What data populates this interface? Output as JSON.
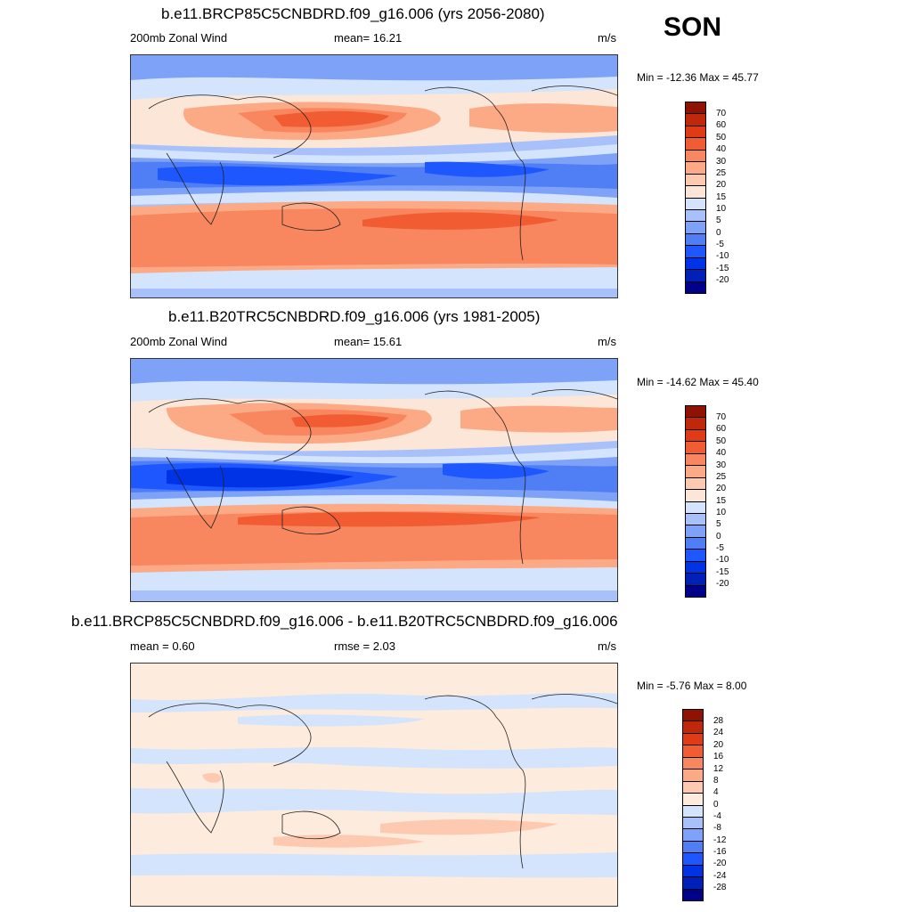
{
  "season": "SON",
  "colors": {
    "abs_scale": [
      "#00008b",
      "#0020b8",
      "#0033e6",
      "#1f57ff",
      "#4f7ef5",
      "#7ea2f7",
      "#a8c1fa",
      "#d3e4fc",
      "#fbe6d8",
      "#fdc9b0",
      "#fca985",
      "#f8865e",
      "#f25c33",
      "#e03a16",
      "#c1280b",
      "#8f1203"
    ],
    "diff_scale": [
      "#00008b",
      "#0020b8",
      "#0033e6",
      "#1f57ff",
      "#4f7ef5",
      "#7ea2f7",
      "#a8c1fa",
      "#d3e4fc",
      "#fdebdd",
      "#fdc9b0",
      "#fca985",
      "#f8865e",
      "#f25c33",
      "#e03a16",
      "#c1280b",
      "#8f1203"
    ]
  },
  "panels": [
    {
      "id": "future",
      "title": "b.e11.BRCP85C5CNBDRD.f09_g16.006 (yrs 2056-2080)",
      "left_label": "200mb Zonal Wind",
      "center_label": "mean=  16.21",
      "right_label": "m/s",
      "minmax": "Min = -12.36 Max =  45.77",
      "colorbar_labels": [
        "70",
        "60",
        "50",
        "40",
        "30",
        "25",
        "20",
        "15",
        "10",
        "5",
        "0",
        "-5",
        "-10",
        "-15",
        "-20"
      ]
    },
    {
      "id": "historical",
      "title": "b.e11.B20TRC5CNBDRD.f09_g16.006 (yrs 1981-2005)",
      "left_label": "200mb Zonal Wind",
      "center_label": "mean=  15.61",
      "right_label": "m/s",
      "minmax": "Min = -14.62 Max =  45.40",
      "colorbar_labels": [
        "70",
        "60",
        "50",
        "40",
        "30",
        "25",
        "20",
        "15",
        "10",
        "5",
        "0",
        "-5",
        "-10",
        "-15",
        "-20"
      ]
    },
    {
      "id": "difference",
      "title": "b.e11.BRCP85C5CNBDRD.f09_g16.006 - b.e11.B20TRC5CNBDRD.f09_g16.006",
      "left_label": "mean =   0.60",
      "center_label": "rmse =   2.03",
      "right_label": "m/s",
      "minmax": "Min =  -5.76 Max =   8.00",
      "colorbar_labels": [
        "28",
        "24",
        "20",
        "16",
        "12",
        "8",
        "4",
        "0",
        "-4",
        "-8",
        "-12",
        "-16",
        "-20",
        "-24",
        "-28"
      ]
    }
  ]
}
